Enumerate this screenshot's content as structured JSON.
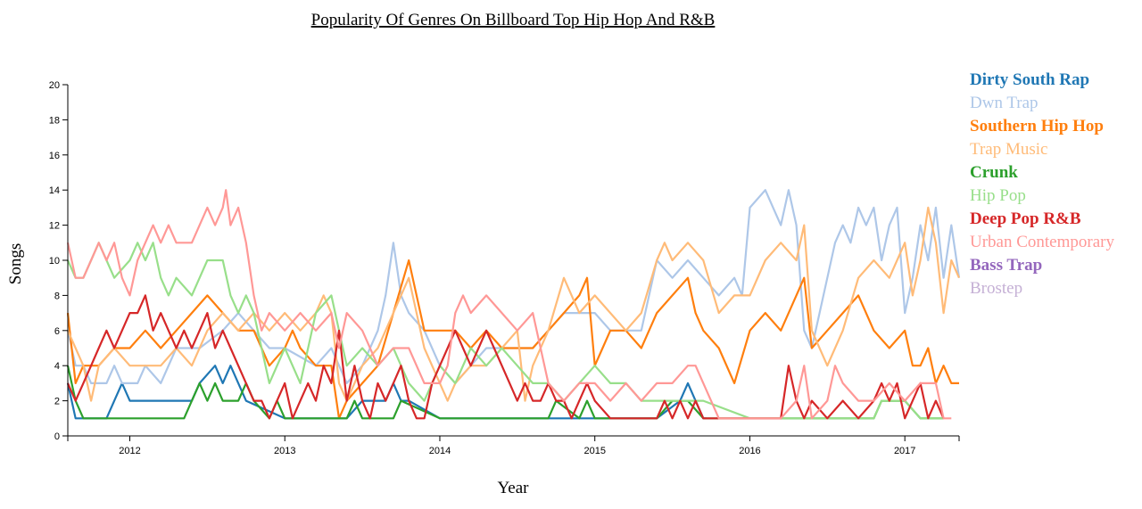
{
  "chart_data": {
    "type": "line",
    "title": "Popularity Of Genres On Billboard Top Hip Hop And R&B",
    "xlabel": "Year",
    "ylabel": "Songs",
    "xlim": [
      2011.6,
      2017.35
    ],
    "ylim": [
      0,
      20
    ],
    "x_ticks": [
      "2012",
      "2013",
      "2014",
      "2015",
      "2016",
      "2017"
    ],
    "y_ticks": [
      0,
      2,
      4,
      6,
      8,
      10,
      12,
      14,
      16,
      18,
      20
    ],
    "grid": false,
    "legend": "right",
    "series": [
      {
        "name": "Dirty South Rap",
        "color": "#1f77b4",
        "x": [
          2011.6,
          2011.65,
          2011.7,
          2011.85,
          2011.9,
          2011.95,
          2012.0,
          2012.2,
          2012.4,
          2012.45,
          2012.55,
          2012.6,
          2012.65,
          2012.7,
          2012.75,
          2013.0,
          2013.3,
          2013.4,
          2013.5,
          2013.65,
          2013.7,
          2013.75,
          2013.8,
          2014.0,
          2014.05,
          2015.0,
          2015.4,
          2015.55,
          2015.6,
          2015.65,
          2015.7,
          2015.72
        ],
        "y": [
          3,
          1,
          1,
          1,
          2,
          3,
          2,
          2,
          2,
          3,
          4,
          3,
          4,
          3,
          2,
          1,
          1,
          1,
          2,
          2,
          3,
          2,
          2,
          1,
          1,
          1,
          1,
          2,
          3,
          2,
          1,
          1
        ]
      },
      {
        "name": "Dwn Trap",
        "color": "#aec7e8",
        "x": [
          2011.6,
          2011.65,
          2011.7,
          2011.75,
          2011.85,
          2011.9,
          2011.95,
          2012.05,
          2012.1,
          2012.2,
          2012.3,
          2012.45,
          2012.6,
          2012.7,
          2012.8,
          2012.9,
          2013.0,
          2013.2,
          2013.3,
          2013.4,
          2013.5,
          2013.6,
          2013.65,
          2013.7,
          2013.75,
          2013.8,
          2013.9,
          2014.0,
          2014.1,
          2014.2,
          2014.3,
          2014.4,
          2014.5,
          2014.6,
          2014.7,
          2014.8,
          2014.9,
          2015.0,
          2015.1,
          2015.2,
          2015.3,
          2015.4,
          2015.5,
          2015.6,
          2015.7,
          2015.8,
          2015.9,
          2015.95,
          2016.0,
          2016.1,
          2016.15,
          2016.2,
          2016.25,
          2016.3,
          2016.35,
          2016.4,
          2016.45,
          2016.5,
          2016.55,
          2016.6,
          2016.65,
          2016.7,
          2016.75,
          2016.8,
          2016.85,
          2016.9,
          2016.95,
          2017.0,
          2017.05,
          2017.1,
          2017.15,
          2017.2,
          2017.25,
          2017.3,
          2017.35
        ],
        "y": [
          6,
          4,
          4,
          3,
          3,
          4,
          3,
          3,
          4,
          3,
          5,
          5,
          6,
          7,
          6,
          5,
          5,
          4,
          5,
          3,
          4,
          6,
          8,
          11,
          8,
          7,
          6,
          4,
          3,
          4,
          5,
          5,
          5,
          5,
          6,
          7,
          7,
          7,
          6,
          6,
          6,
          10,
          9,
          10,
          9,
          8,
          9,
          8,
          13,
          14,
          13,
          12,
          14,
          12,
          6,
          5,
          7,
          9,
          11,
          12,
          11,
          13,
          12,
          13,
          10,
          12,
          13,
          7,
          9,
          12,
          10,
          13,
          9,
          12,
          9
        ]
      },
      {
        "name": "Southern Hip Hop",
        "color": "#ff7f0e",
        "x": [
          2011.6,
          2011.65,
          2011.7,
          2011.8,
          2011.9,
          2012.0,
          2012.1,
          2012.2,
          2012.3,
          2012.4,
          2012.5,
          2012.6,
          2012.7,
          2012.8,
          2012.9,
          2013.0,
          2013.05,
          2013.1,
          2013.2,
          2013.3,
          2013.35,
          2013.4,
          2013.5,
          2013.6,
          2013.7,
          2013.8,
          2013.9,
          2014.0,
          2014.1,
          2014.2,
          2014.3,
          2014.4,
          2014.5,
          2014.6,
          2014.7,
          2014.8,
          2014.9,
          2014.95,
          2015.0,
          2015.05,
          2015.1,
          2015.2,
          2015.3,
          2015.4,
          2015.5,
          2015.6,
          2015.65,
          2015.7,
          2015.8,
          2015.9,
          2016.0,
          2016.1,
          2016.2,
          2016.3,
          2016.35,
          2016.4,
          2016.5,
          2016.6,
          2016.7,
          2016.8,
          2016.9,
          2017.0,
          2017.05,
          2017.1,
          2017.15,
          2017.2,
          2017.25,
          2017.3,
          2017.35
        ],
        "y": [
          7,
          3,
          4,
          4,
          5,
          5,
          6,
          5,
          6,
          7,
          8,
          7,
          6,
          6,
          4,
          5,
          6,
          5,
          4,
          4,
          1,
          2,
          3,
          4,
          7,
          10,
          6,
          6,
          6,
          5,
          6,
          5,
          5,
          5,
          6,
          7,
          8,
          9,
          4,
          5,
          6,
          6,
          5,
          7,
          8,
          9,
          7,
          6,
          5,
          3,
          6,
          7,
          6,
          8,
          9,
          5,
          6,
          7,
          8,
          6,
          5,
          6,
          4,
          4,
          5,
          3,
          4,
          3,
          3
        ]
      },
      {
        "name": "Trap Music",
        "color": "#ffbb78",
        "x": [
          2011.6,
          2011.65,
          2011.7,
          2011.75,
          2011.8,
          2011.9,
          2012.0,
          2012.1,
          2012.2,
          2012.3,
          2012.4,
          2012.5,
          2012.6,
          2012.7,
          2012.8,
          2012.9,
          2013.0,
          2013.1,
          2013.2,
          2013.25,
          2013.3,
          2013.35,
          2013.4,
          2013.5,
          2013.6,
          2013.7,
          2013.75,
          2013.8,
          2013.9,
          2014.0,
          2014.05,
          2014.1,
          2014.2,
          2014.3,
          2014.4,
          2014.5,
          2014.55,
          2014.6,
          2014.7,
          2014.8,
          2014.9,
          2015.0,
          2015.1,
          2015.2,
          2015.3,
          2015.4,
          2015.45,
          2015.5,
          2015.6,
          2015.7,
          2015.8,
          2015.9,
          2016.0,
          2016.1,
          2016.2,
          2016.3,
          2016.35,
          2016.4,
          2016.5,
          2016.6,
          2016.7,
          2016.8,
          2016.9,
          2017.0,
          2017.05,
          2017.1,
          2017.15,
          2017.2,
          2017.25,
          2017.3,
          2017.35
        ],
        "y": [
          6,
          5,
          4,
          2,
          4,
          5,
          4,
          4,
          4,
          5,
          4,
          6,
          7,
          6,
          7,
          6,
          7,
          6,
          7,
          8,
          7,
          3,
          2,
          4,
          5,
          7,
          8,
          9,
          5,
          3,
          2,
          3,
          4,
          4,
          5,
          6,
          2,
          4,
          6,
          9,
          7,
          8,
          7,
          6,
          7,
          10,
          11,
          10,
          11,
          10,
          7,
          8,
          8,
          10,
          11,
          10,
          12,
          6,
          4,
          6,
          9,
          10,
          9,
          11,
          8,
          10,
          13,
          11,
          7,
          10,
          9
        ]
      },
      {
        "name": "Crunk",
        "color": "#2ca02c",
        "x": [
          2011.6,
          2011.65,
          2011.7,
          2012.0,
          2012.35,
          2012.4,
          2012.45,
          2012.5,
          2012.55,
          2012.6,
          2012.65,
          2012.7,
          2012.75,
          2012.8,
          2012.9,
          2012.95,
          2013.0,
          2013.05,
          2013.4,
          2013.45,
          2013.5,
          2013.7,
          2013.75,
          2014.0,
          2014.05,
          2014.7,
          2014.75,
          2014.9,
          2014.95,
          2015.0,
          2015.05,
          2015.4,
          2015.5,
          2015.6,
          2015.7,
          2016.5,
          2016.6,
          2016.8,
          2016.85,
          2016.9,
          2017.0,
          2017.1,
          2017.2,
          2017.25
        ],
        "y": [
          4,
          2,
          1,
          1,
          1,
          2,
          3,
          2,
          3,
          2,
          2,
          2,
          3,
          2,
          1,
          2,
          1,
          1,
          1,
          2,
          1,
          1,
          2,
          1,
          1,
          1,
          2,
          1,
          2,
          1,
          1,
          1,
          2,
          2,
          1,
          1,
          1,
          1,
          2,
          2,
          2,
          1,
          1,
          1
        ]
      },
      {
        "name": "Hip Pop",
        "color": "#98df8a",
        "x": [
          2011.6,
          2011.65,
          2011.7,
          2011.75,
          2011.8,
          2011.85,
          2011.9,
          2012.0,
          2012.05,
          2012.1,
          2012.15,
          2012.2,
          2012.25,
          2012.3,
          2012.4,
          2012.45,
          2012.5,
          2012.6,
          2012.65,
          2012.7,
          2012.75,
          2012.8,
          2012.85,
          2012.9,
          2013.0,
          2013.05,
          2013.1,
          2013.2,
          2013.3,
          2013.35,
          2013.4,
          2013.5,
          2013.6,
          2013.7,
          2013.75,
          2013.8,
          2013.9,
          2014.0,
          2014.1,
          2014.2,
          2014.3,
          2014.4,
          2014.5,
          2014.6,
          2014.7,
          2014.8,
          2014.9,
          2015.0,
          2015.1,
          2015.2,
          2015.3,
          2015.4,
          2015.5,
          2015.6,
          2015.7,
          2016.0,
          2016.5,
          2016.6,
          2016.8,
          2016.85,
          2017.0,
          2017.1,
          2017.2,
          2017.25
        ],
        "y": [
          10,
          9,
          9,
          10,
          11,
          10,
          9,
          10,
          11,
          10,
          11,
          9,
          8,
          9,
          8,
          9,
          10,
          10,
          8,
          7,
          8,
          7,
          5,
          3,
          5,
          4,
          3,
          7,
          8,
          6,
          4,
          5,
          4,
          5,
          4,
          3,
          2,
          4,
          3,
          5,
          4,
          5,
          4,
          3,
          3,
          2,
          3,
          4,
          3,
          3,
          2,
          2,
          2,
          2,
          2,
          1,
          1,
          1,
          1,
          2,
          2,
          1,
          1,
          1
        ]
      },
      {
        "name": "Deep Pop R&B",
        "color": "#d62728",
        "x": [
          2011.6,
          2011.65,
          2011.7,
          2011.75,
          2011.8,
          2011.85,
          2011.9,
          2011.95,
          2012.0,
          2012.05,
          2012.1,
          2012.15,
          2012.2,
          2012.25,
          2012.3,
          2012.35,
          2012.4,
          2012.45,
          2012.5,
          2012.55,
          2012.6,
          2012.65,
          2012.7,
          2012.75,
          2012.8,
          2012.85,
          2012.9,
          2012.95,
          2013.0,
          2013.05,
          2013.1,
          2013.15,
          2013.2,
          2013.25,
          2013.3,
          2013.35,
          2013.4,
          2013.45,
          2013.5,
          2013.55,
          2013.6,
          2013.65,
          2013.7,
          2013.75,
          2013.8,
          2013.85,
          2013.9,
          2013.95,
          2014.0,
          2014.05,
          2014.1,
          2014.15,
          2014.2,
          2014.25,
          2014.3,
          2014.35,
          2014.4,
          2014.45,
          2014.5,
          2014.55,
          2014.6,
          2014.65,
          2014.7,
          2014.75,
          2014.8,
          2014.85,
          2014.9,
          2014.95,
          2015.0,
          2015.1,
          2015.2,
          2015.3,
          2015.4,
          2015.45,
          2015.5,
          2015.55,
          2015.6,
          2015.65,
          2015.7,
          2016.2,
          2016.25,
          2016.3,
          2016.35,
          2016.4,
          2016.5,
          2016.6,
          2016.7,
          2016.8,
          2016.85,
          2016.9,
          2016.95,
          2017.0,
          2017.05,
          2017.1,
          2017.15,
          2017.2,
          2017.25
        ],
        "y": [
          3,
          2,
          3,
          4,
          5,
          6,
          5,
          6,
          7,
          7,
          8,
          6,
          7,
          6,
          5,
          6,
          5,
          6,
          7,
          5,
          6,
          5,
          4,
          3,
          2,
          2,
          1,
          2,
          3,
          1,
          2,
          3,
          2,
          4,
          3,
          6,
          2,
          4,
          2,
          1,
          3,
          2,
          3,
          4,
          2,
          1,
          1,
          3,
          4,
          5,
          6,
          5,
          4,
          5,
          6,
          5,
          4,
          3,
          2,
          3,
          2,
          2,
          3,
          2,
          2,
          1,
          2,
          3,
          2,
          1,
          1,
          1,
          1,
          2,
          1,
          2,
          1,
          2,
          1,
          1,
          4,
          2,
          1,
          2,
          1,
          2,
          1,
          2,
          3,
          2,
          3,
          1,
          2,
          3,
          1,
          2,
          1
        ]
      },
      {
        "name": "Urban Contemporary",
        "color": "#ff9896",
        "x": [
          2011.6,
          2011.65,
          2011.7,
          2011.75,
          2011.8,
          2011.85,
          2011.9,
          2011.95,
          2012.0,
          2012.05,
          2012.1,
          2012.15,
          2012.2,
          2012.25,
          2012.3,
          2012.35,
          2012.4,
          2012.45,
          2012.5,
          2012.55,
          2012.6,
          2012.62,
          2012.65,
          2012.7,
          2012.75,
          2012.8,
          2012.85,
          2012.9,
          2013.0,
          2013.1,
          2013.2,
          2013.3,
          2013.35,
          2013.4,
          2013.5,
          2013.6,
          2013.7,
          2013.8,
          2013.85,
          2013.9,
          2014.0,
          2014.05,
          2014.1,
          2014.15,
          2014.2,
          2014.3,
          2014.4,
          2014.5,
          2014.6,
          2014.7,
          2014.8,
          2014.9,
          2015.0,
          2015.1,
          2015.2,
          2015.3,
          2015.4,
          2015.5,
          2015.6,
          2015.65,
          2015.7,
          2015.75,
          2015.8,
          2016.0,
          2016.2,
          2016.3,
          2016.35,
          2016.4,
          2016.5,
          2016.55,
          2016.6,
          2016.7,
          2016.8,
          2016.9,
          2017.0,
          2017.1,
          2017.2,
          2017.25,
          2017.3
        ],
        "y": [
          11,
          9,
          9,
          10,
          11,
          10,
          11,
          9,
          8,
          10,
          11,
          12,
          11,
          12,
          11,
          11,
          11,
          12,
          13,
          12,
          13,
          14,
          12,
          13,
          11,
          8,
          6,
          7,
          6,
          7,
          6,
          7,
          5,
          7,
          6,
          4,
          5,
          5,
          4,
          3,
          3,
          4,
          7,
          8,
          7,
          8,
          7,
          6,
          7,
          3,
          2,
          3,
          3,
          2,
          3,
          2,
          3,
          3,
          4,
          4,
          3,
          2,
          1,
          1,
          1,
          2,
          4,
          1,
          2,
          4,
          3,
          2,
          2,
          3,
          2,
          3,
          3,
          1,
          1
        ]
      },
      {
        "name": "Bass Trap",
        "color": "#9467bd",
        "x": [],
        "y": []
      },
      {
        "name": "Brostep",
        "color": "#c5b0d5",
        "x": [],
        "y": []
      }
    ]
  }
}
